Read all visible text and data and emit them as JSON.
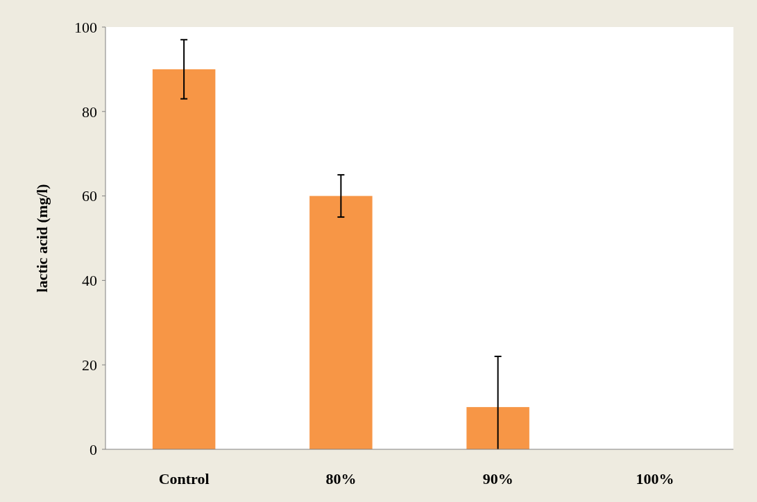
{
  "chart_data": {
    "type": "bar",
    "ylabel": "lactic acid (mg/l)",
    "categories": [
      "Control",
      "80%",
      "90%",
      "100%"
    ],
    "values": [
      90,
      60,
      10,
      0
    ],
    "errors": [
      7,
      5,
      [
        0,
        22
      ],
      null
    ],
    "color": "#f79646",
    "ylim": [
      0,
      100
    ],
    "yticks": [
      0,
      20,
      40,
      60,
      80,
      100
    ],
    "grid": false
  }
}
